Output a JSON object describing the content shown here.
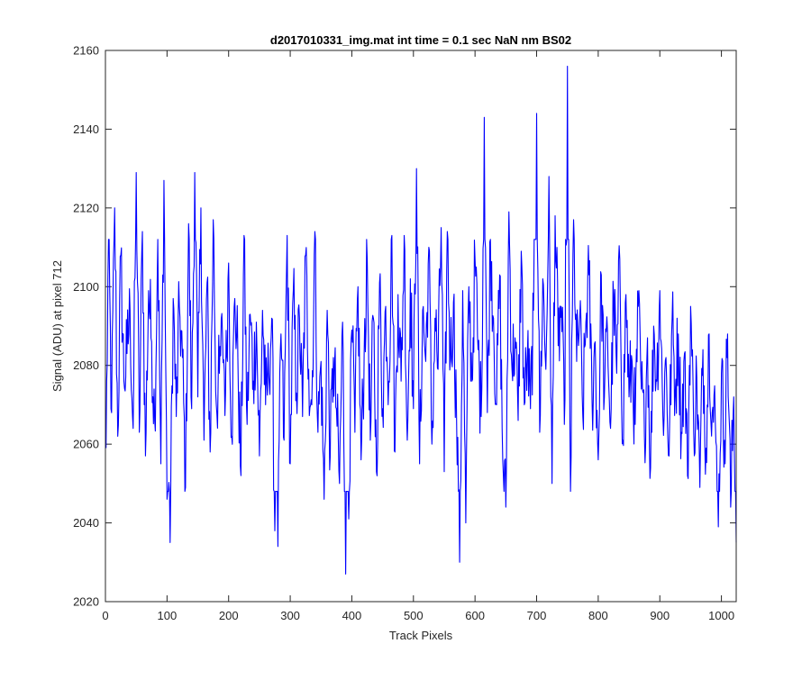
{
  "chart_data": {
    "type": "line",
    "title": "d2017010331_img.mat int time = 0.1 sec  NaN nm BS02",
    "xlabel": "Track Pixels",
    "ylabel": "Signal (ADU) at pixel 712",
    "xlim": [
      0,
      1024
    ],
    "ylim": [
      2020,
      2160
    ],
    "xticks": [
      0,
      100,
      200,
      300,
      400,
      500,
      600,
      700,
      800,
      900,
      1000
    ],
    "yticks": [
      2020,
      2040,
      2060,
      2080,
      2100,
      2120,
      2140,
      2160
    ],
    "grid": false,
    "legend": "none",
    "line_color": "#0000ff",
    "x_start": 1,
    "x_step": 1,
    "n_points": 1024,
    "anchor_x": [
      1,
      5,
      10,
      15,
      20,
      25,
      30,
      35,
      40,
      45,
      50,
      55,
      60,
      65,
      70,
      75,
      80,
      85,
      90,
      95,
      100,
      105,
      110,
      115,
      120,
      125,
      130,
      135,
      140,
      145,
      150,
      155,
      160,
      165,
      170,
      175,
      180,
      185,
      190,
      195,
      200,
      205,
      210,
      215,
      220,
      225,
      230,
      235,
      240,
      245,
      250,
      255,
      260,
      265,
      270,
      275,
      280,
      285,
      290,
      295,
      300,
      305,
      310,
      315,
      320,
      325,
      330,
      335,
      340,
      345,
      350,
      355,
      360,
      365,
      370,
      375,
      380,
      385,
      390,
      395,
      400,
      405,
      410,
      415,
      420,
      425,
      430,
      435,
      440,
      445,
      450,
      455,
      460,
      465,
      470,
      475,
      480,
      485,
      490,
      495,
      500,
      505,
      510,
      515,
      520,
      525,
      530,
      535,
      540,
      545,
      550,
      555,
      560,
      565,
      570,
      575,
      580,
      585,
      590,
      595,
      600,
      605,
      610,
      615,
      620,
      625,
      630,
      635,
      640,
      645,
      650,
      655,
      660,
      665,
      670,
      675,
      680,
      685,
      690,
      695,
      700,
      705,
      710,
      715,
      720,
      725,
      730,
      735,
      740,
      745,
      750,
      755,
      760,
      765,
      770,
      775,
      780,
      785,
      790,
      795,
      800,
      805,
      810,
      815,
      820,
      825,
      830,
      835,
      840,
      845,
      850,
      855,
      860,
      865,
      870,
      875,
      880,
      885,
      890,
      895,
      900,
      905,
      910,
      915,
      920,
      925,
      930,
      935,
      940,
      945,
      950,
      955,
      960,
      965,
      970,
      975,
      980,
      985,
      990,
      995,
      1000,
      1005,
      1010,
      1015,
      1020,
      1024
    ],
    "anchor_y": [
      2059,
      2112,
      2068,
      2120,
      2062,
      2108,
      2076,
      2083,
      2094,
      2064,
      2129,
      2063,
      2114,
      2057,
      2099,
      2086,
      2066,
      2112,
      2055,
      2127,
      2046,
      2035,
      2097,
      2067,
      2095,
      2082,
      2049,
      2116,
      2069,
      2129,
      2072,
      2120,
      2061,
      2101,
      2058,
      2117,
      2070,
      2078,
      2088,
      2073,
      2106,
      2062,
      2097,
      2082,
      2052,
      2113,
      2065,
      2093,
      2076,
      2091,
      2057,
      2094,
      2070,
      2078,
      2092,
      2038,
      2034,
      2088,
      2061,
      2113,
      2055,
      2099,
      2073,
      2092,
      2067,
      2108,
      2079,
      2070,
      2114,
      2063,
      2081,
      2046,
      2094,
      2057,
      2082,
      2069,
      2050,
      2091,
      2027,
      2041,
      2089,
      2063,
      2100,
      2056,
      2083,
      2107,
      2061,
      2092,
      2053,
      2101,
      2069,
      2095,
      2076,
      2113,
      2058,
      2098,
      2076,
      2113,
      2061,
      2102,
      2069,
      2130,
      2055,
      2094,
      2081,
      2110,
      2060,
      2092,
      2079,
      2115,
      2053,
      2114,
      2081,
      2096,
      2067,
      2030,
      2099,
      2040,
      2100,
      2076,
      2107,
      2084,
      2067,
      2143,
      2068,
      2112,
      2092,
      2070,
      2103,
      2056,
      2044,
      2119,
      2079,
      2087,
      2066,
      2109,
      2070,
      2083,
      2069,
      2094,
      2144,
      2063,
      2102,
      2079,
      2128,
      2050,
      2118,
      2085,
      2095,
      2065,
      2156,
      2048,
      2117,
      2081,
      2092,
      2067,
      2091,
      2103,
      2071,
      2086,
      2056,
      2103,
      2072,
      2089,
      2064,
      2098,
      2078,
      2107,
      2061,
      2098,
      2072,
      2081,
      2065,
      2095,
      2074,
      2062,
      2087,
      2054,
      2090,
      2076,
      2099,
      2067,
      2082,
      2057,
      2092,
      2073,
      2088,
      2063,
      2083,
      2052,
      2095,
      2063,
      2077,
      2049,
      2084,
      2059,
      2088,
      2068,
      2066,
      2039,
      2078,
      2061,
      2088,
      2044,
      2072,
      2035,
      2105,
      2055,
      2081,
      2046,
      2071,
      2062,
      2101,
      2056,
      2080,
      2066
    ]
  }
}
